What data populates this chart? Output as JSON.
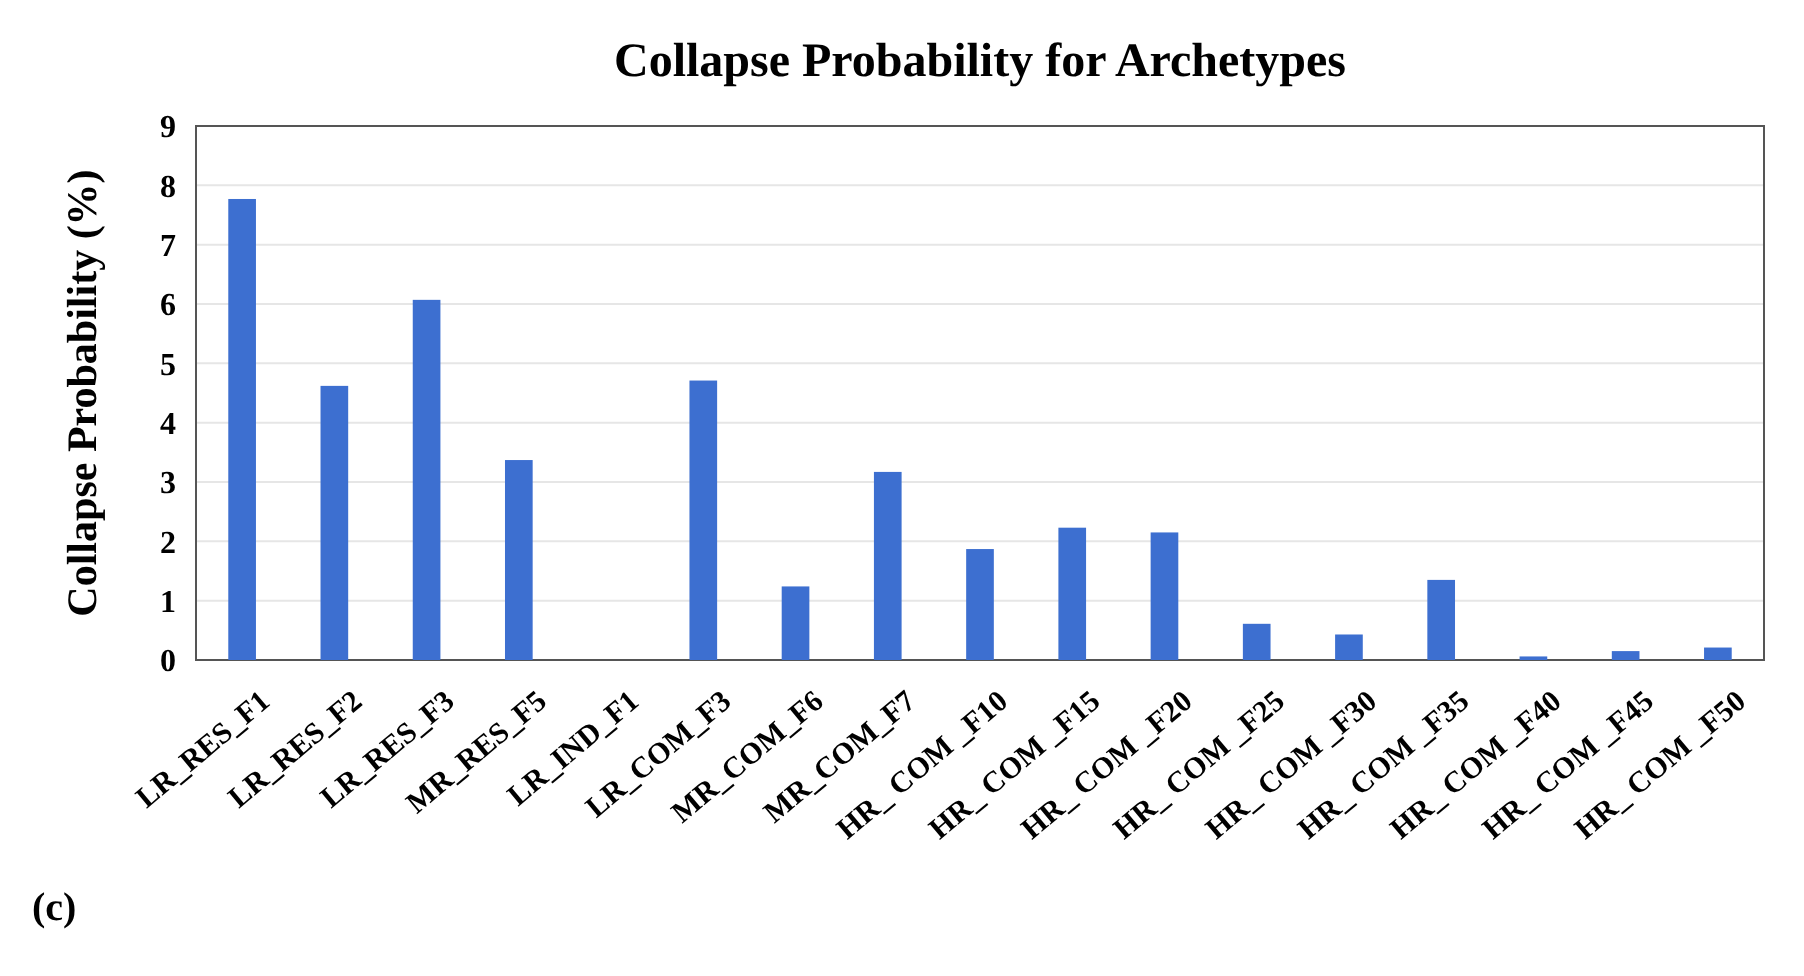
{
  "chart_data": {
    "type": "bar",
    "title": "Collapse Probability for Archetypes",
    "ylabel": "Collapse Probability  (%)",
    "categories": [
      "LR_RES_F1",
      "LR_RES_F2",
      "LR_RES_F3",
      "MR_RES_F5",
      "LR_IND_F1",
      "LR_COM_F3",
      "MR_COM_F6",
      "MR_COM_F7",
      "HR_ COM _F10",
      "HR_ COM _F15",
      "HR_ COM _F20",
      "HR_ COM _F25",
      "HR_ COM _F30",
      "HR_ COM _F35",
      "HR_ COM _F40",
      "HR_ COM _F45",
      "HR_ COM _F50"
    ],
    "values": [
      7.77,
      4.62,
      6.07,
      3.37,
      0,
      4.71,
      1.24,
      3.17,
      1.87,
      2.23,
      2.15,
      0.61,
      0.43,
      1.35,
      0.06,
      0.15,
      0.21
    ],
    "color": "#3d6fd0",
    "ylim": [
      0,
      9
    ],
    "yticks": [
      0,
      1,
      2,
      3,
      4,
      5,
      6,
      7,
      8,
      9
    ],
    "grid": "y",
    "annotations": [
      "(c)"
    ]
  }
}
